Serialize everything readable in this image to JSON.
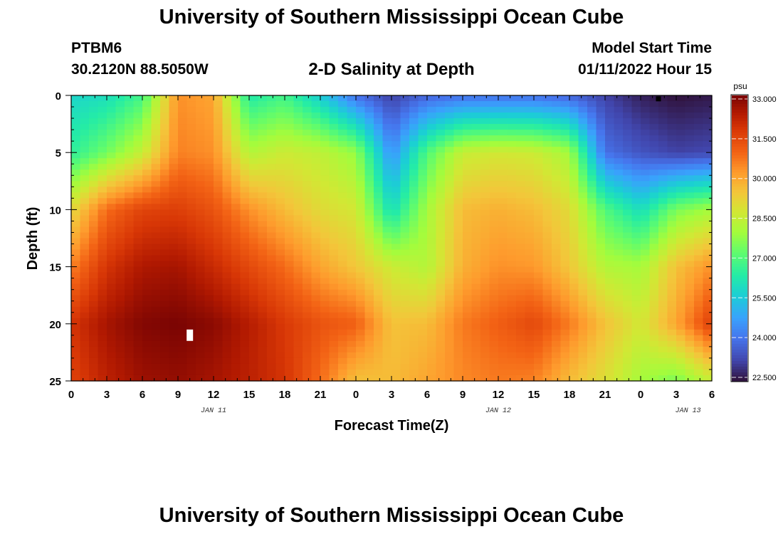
{
  "header": {
    "title": "University of Southern Mississippi Ocean Cube",
    "station": "PTBM6",
    "coords": "30.2120N  88.5050W",
    "subtitle": "2-D Salinity at Depth",
    "model_start_label": "Model Start Time",
    "model_start_value": "01/11/2022 Hour 15"
  },
  "footer": {
    "title": "University of Southern Mississippi Ocean Cube"
  },
  "chart_data": {
    "type": "heatmap",
    "title": "2-D Salinity at Depth",
    "xlabel": "Forecast Time(Z)",
    "ylabel": "Depth (ft)",
    "x_range_hours": [
      0,
      54
    ],
    "x_ticks": [
      {
        "h": 0,
        "label": "0"
      },
      {
        "h": 3,
        "label": "3"
      },
      {
        "h": 6,
        "label": "6"
      },
      {
        "h": 9,
        "label": "9"
      },
      {
        "h": 12,
        "label": "12"
      },
      {
        "h": 15,
        "label": "15"
      },
      {
        "h": 18,
        "label": "18"
      },
      {
        "h": 21,
        "label": "21"
      },
      {
        "h": 24,
        "label": "0"
      },
      {
        "h": 27,
        "label": "3"
      },
      {
        "h": 30,
        "label": "6"
      },
      {
        "h": 33,
        "label": "9"
      },
      {
        "h": 36,
        "label": "12"
      },
      {
        "h": 39,
        "label": "15"
      },
      {
        "h": 42,
        "label": "18"
      },
      {
        "h": 45,
        "label": "21"
      },
      {
        "h": 48,
        "label": "0"
      },
      {
        "h": 51,
        "label": "3"
      },
      {
        "h": 54,
        "label": "6"
      }
    ],
    "date_labels": [
      {
        "h": 12,
        "label": "JAN 11"
      },
      {
        "h": 36,
        "label": "JAN 12"
      },
      {
        "h": 52,
        "label": "JAN 13"
      }
    ],
    "y_range": [
      0,
      25
    ],
    "y_ticks": [
      0,
      5,
      10,
      15,
      20,
      25
    ],
    "colorbar": {
      "unit": "psu",
      "min": 22.5,
      "max": 33.0,
      "ticks": [
        "33.000",
        "31.500",
        "30.000",
        "28.500",
        "27.000",
        "25.500",
        "24.000",
        "22.500"
      ]
    },
    "grid_depths_ft": [
      0,
      5,
      10,
      15,
      20,
      25
    ],
    "grid_hours": [
      0,
      3,
      6,
      9,
      12,
      15,
      18,
      21,
      24,
      27,
      30,
      33,
      36,
      39,
      42,
      45,
      48,
      51,
      54
    ],
    "salinity_psu": [
      [
        25.8,
        26.0,
        26.8,
        30.3,
        30.0,
        26.3,
        26.8,
        25.6,
        24.0,
        23.2,
        23.8,
        24.0,
        24.0,
        24.0,
        23.8,
        23.2,
        22.7,
        22.5,
        22.6
      ],
      [
        26.5,
        27.4,
        28.5,
        30.5,
        30.3,
        28.2,
        28.6,
        28.4,
        27.8,
        24.5,
        27.0,
        28.5,
        28.7,
        28.6,
        28.0,
        24.0,
        23.5,
        23.2,
        23.3
      ],
      [
        29.0,
        30.8,
        31.5,
        31.6,
        31.2,
        30.3,
        29.6,
        29.0,
        28.7,
        26.0,
        28.0,
        29.6,
        29.8,
        29.6,
        29.0,
        27.0,
        26.0,
        27.5,
        28.0
      ],
      [
        30.5,
        31.8,
        32.4,
        32.5,
        32.0,
        31.4,
        30.8,
        30.0,
        29.4,
        28.6,
        28.2,
        29.8,
        30.3,
        30.2,
        29.4,
        28.2,
        28.0,
        29.5,
        30.3
      ],
      [
        31.8,
        32.5,
        32.9,
        33.0,
        32.8,
        32.3,
        31.7,
        31.2,
        31.0,
        29.5,
        29.6,
        30.6,
        31.0,
        31.4,
        30.6,
        29.5,
        28.7,
        30.0,
        31.6
      ],
      [
        31.5,
        32.2,
        32.6,
        32.7,
        32.5,
        32.2,
        31.8,
        30.8,
        29.5,
        29.6,
        30.0,
        30.4,
        30.6,
        30.5,
        29.6,
        28.9,
        28.0,
        27.5,
        28.5
      ]
    ],
    "markers": [
      {
        "h": 10.0,
        "depth": 21.0,
        "color": "#ffffff"
      },
      {
        "h": 49.5,
        "depth": 0.3,
        "color": "#000000"
      }
    ]
  }
}
